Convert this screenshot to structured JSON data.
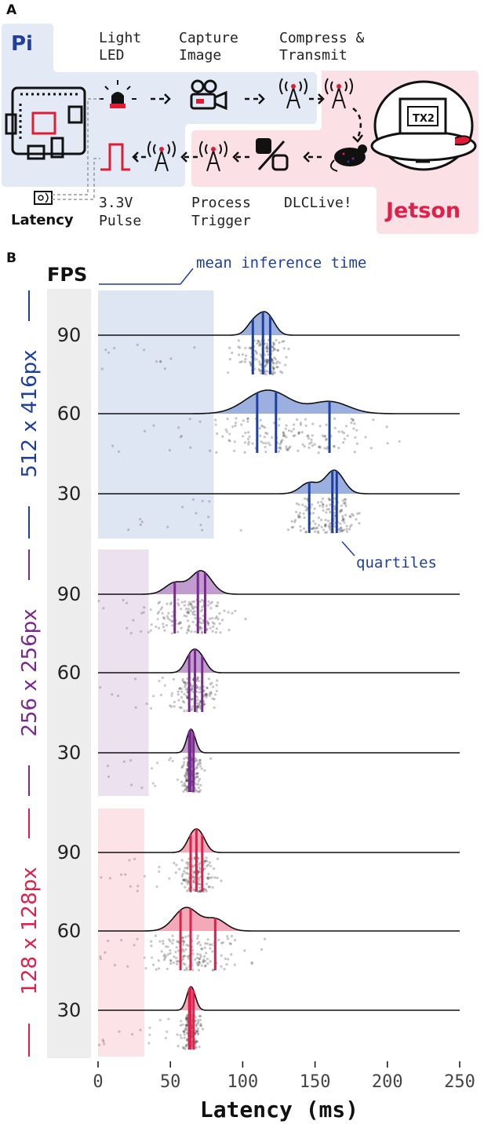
{
  "panel_a": {
    "letter": "A",
    "pi_label": "Pi",
    "jetson_label": "Jetson",
    "tx2_label": "TX2",
    "latency_label": "Latency",
    "steps": {
      "light_led": [
        "Light",
        "LED"
      ],
      "capture_image": [
        "Capture",
        "Image"
      ],
      "compress_transmit": [
        "Compress &",
        "Transmit"
      ],
      "pulse": [
        "3.3V",
        "Pulse"
      ],
      "process_trigger": [
        "Process",
        "Trigger"
      ],
      "dlclive": [
        "DLCLive!"
      ]
    },
    "colors": {
      "pi_bg": "#e3e9f5",
      "jetson_bg": "#fbe1e6",
      "pi_text": "#1f3f9f",
      "jetson_text": "#e0204a",
      "led_red": "#e21b35"
    }
  },
  "panel_b": {
    "letter": "B",
    "fps_header": "FPS",
    "mean_annotation": "mean inference time",
    "quartiles_annotation": "quartiles"
  },
  "chart_data": {
    "type": "ridgeline",
    "xlabel": "Latency (ms)",
    "xlim": [
      0,
      250
    ],
    "xticks": [
      0,
      50,
      100,
      150,
      200,
      250
    ],
    "groups": [
      {
        "name": "512 x 416px",
        "color": "#1f3f9f",
        "mean_inference_time": 80,
        "rows": [
          {
            "fps": "90",
            "quartiles": [
              107,
              114,
              119
            ]
          },
          {
            "fps": "60",
            "quartiles": [
              110,
              123,
              160
            ]
          },
          {
            "fps": "30",
            "quartiles": [
              146,
              162,
              165
            ]
          }
        ]
      },
      {
        "name": "256 x 256px",
        "color": "#7a2a8f",
        "mean_inference_time": 35,
        "rows": [
          {
            "fps": "90",
            "quartiles": [
              53,
              69,
              74
            ]
          },
          {
            "fps": "60",
            "quartiles": [
              63,
              67,
              72
            ]
          },
          {
            "fps": "30",
            "quartiles": [
              63,
              64,
              66
            ]
          }
        ]
      },
      {
        "name": "128 x 128px",
        "color": "#e0204a",
        "mean_inference_time": 32,
        "rows": [
          {
            "fps": "90",
            "quartiles": [
              64,
              68,
              72
            ]
          },
          {
            "fps": "60",
            "quartiles": [
              57,
              64,
              81
            ]
          },
          {
            "fps": "30",
            "quartiles": [
              63,
              64,
              66
            ]
          }
        ]
      }
    ]
  }
}
